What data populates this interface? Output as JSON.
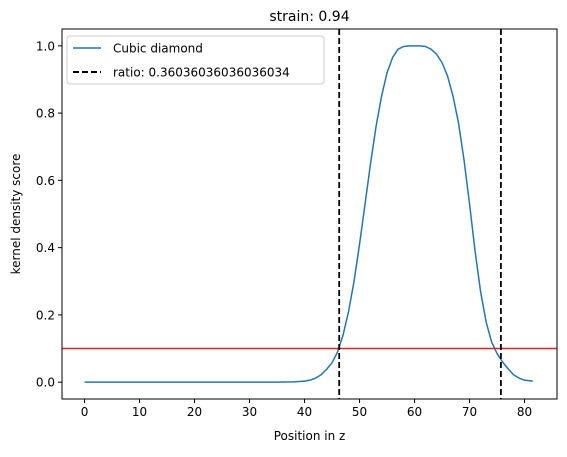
{
  "chart_data": {
    "type": "line",
    "title": "strain: 0.94",
    "xlabel": "Position in z",
    "ylabel": "kernel density score",
    "xlim": [
      -4.1,
      85.9
    ],
    "ylim": [
      -0.05,
      1.05
    ],
    "xticks": [
      0,
      10,
      20,
      30,
      40,
      50,
      60,
      70,
      80
    ],
    "xtick_labels": [
      "0",
      "10",
      "20",
      "30",
      "40",
      "50",
      "60",
      "70",
      "80"
    ],
    "yticks": [
      0.0,
      0.2,
      0.4,
      0.6,
      0.8,
      1.0
    ],
    "ytick_labels": [
      "0.0",
      "0.2",
      "0.4",
      "0.6",
      "0.8",
      "1.0"
    ],
    "grid": false,
    "legend_position": "upper-left",
    "legend": [
      {
        "label": "Cubic diamond",
        "style": "solid",
        "color": "#1f77b4"
      },
      {
        "label": "ratio: 0.36036036036036034",
        "style": "dashed",
        "color": "#000000"
      }
    ],
    "series": [
      {
        "name": "Cubic diamond",
        "color": "#1f77b4",
        "x": [
          0,
          5,
          10,
          15,
          20,
          25,
          30,
          35,
          38,
          40,
          41,
          42,
          43,
          44,
          45,
          46,
          47,
          48,
          49,
          50,
          51,
          52,
          53,
          54,
          55,
          56,
          57,
          58,
          59,
          60,
          61,
          62,
          63,
          64,
          65,
          66,
          67,
          68,
          69,
          70,
          71,
          72,
          73,
          74,
          75,
          76,
          77,
          78,
          79,
          80,
          81.5
        ],
        "y": [
          0.0,
          0.0,
          0.0,
          0.0,
          0.0,
          0.0,
          0.0,
          0.0,
          0.001,
          0.003,
          0.006,
          0.012,
          0.022,
          0.038,
          0.058,
          0.09,
          0.14,
          0.21,
          0.3,
          0.41,
          0.53,
          0.65,
          0.76,
          0.85,
          0.92,
          0.965,
          0.99,
          0.998,
          1.0,
          1.0,
          1.0,
          0.998,
          0.99,
          0.975,
          0.95,
          0.91,
          0.85,
          0.77,
          0.66,
          0.53,
          0.39,
          0.27,
          0.18,
          0.12,
          0.085,
          0.06,
          0.04,
          0.022,
          0.012,
          0.006,
          0.003
        ]
      }
    ],
    "vlines": [
      {
        "x": 46.3,
        "color": "#000000",
        "style": "dashed"
      },
      {
        "x": 75.7,
        "color": "#000000",
        "style": "dashed"
      }
    ],
    "hlines": [
      {
        "y": 0.1,
        "color": "#d62728",
        "style": "solid"
      }
    ]
  }
}
